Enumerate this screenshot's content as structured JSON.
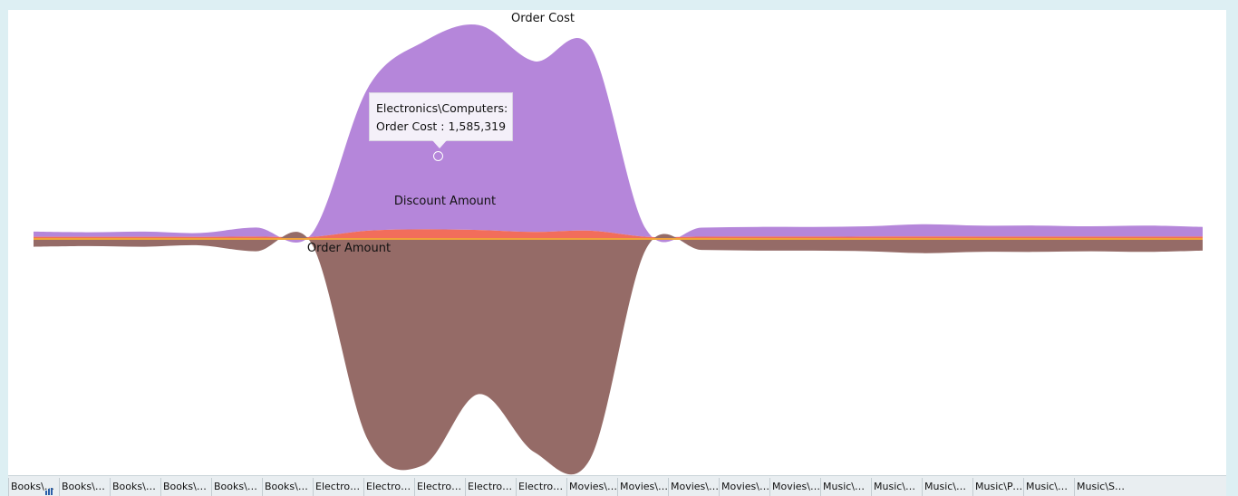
{
  "chart_data": {
    "type": "area",
    "streamgraph": true,
    "categories": [
      "Books\\A…",
      "Books\\B…",
      "Books\\B…",
      "Books\\Li…",
      "Books\\S…",
      "Books\\S…",
      "Electroni…",
      "Electroni…",
      "Electroni…",
      "Electroni…",
      "Electroni…",
      "Movies\\…",
      "Movies\\…",
      "Movies\\…",
      "Movies\\…",
      "Movies\\…",
      "Music\\Al…",
      "Music\\C…",
      "Music\\M…",
      "Music\\Pop",
      "Music\\R…",
      "Music\\S…"
    ],
    "series": [
      {
        "name": "Order Cost",
        "color": "#b586da",
        "values": [
          40000,
          35000,
          40000,
          30000,
          70000,
          25000,
          1100000,
          1450000,
          1585319,
          1320000,
          1420000,
          60000,
          70000,
          75000,
          75000,
          80000,
          95000,
          85000,
          85000,
          80000,
          85000,
          75000
        ]
      },
      {
        "name": "Discount Amount",
        "color": "#f26d5b",
        "values": [
          3000,
          2500,
          3000,
          2000,
          4000,
          2000,
          50000,
          60000,
          55000,
          40000,
          50000,
          3000,
          3500,
          4000,
          4000,
          4000,
          5000,
          4500,
          4500,
          4000,
          4500,
          4000
        ]
      },
      {
        "name": "Order Amount",
        "color": "#956b67",
        "values": [
          60000,
          55000,
          60000,
          50000,
          95000,
          40000,
          1550000,
          1750000,
          1200000,
          1650000,
          1700000,
          80000,
          85000,
          90000,
          90000,
          95000,
          110000,
          100000,
          100000,
          95000,
          100000,
          90000
        ]
      }
    ],
    "tooltip": {
      "line1": "Electronics\\Computers:",
      "line2": "Order Cost : 1,585,319"
    }
  }
}
